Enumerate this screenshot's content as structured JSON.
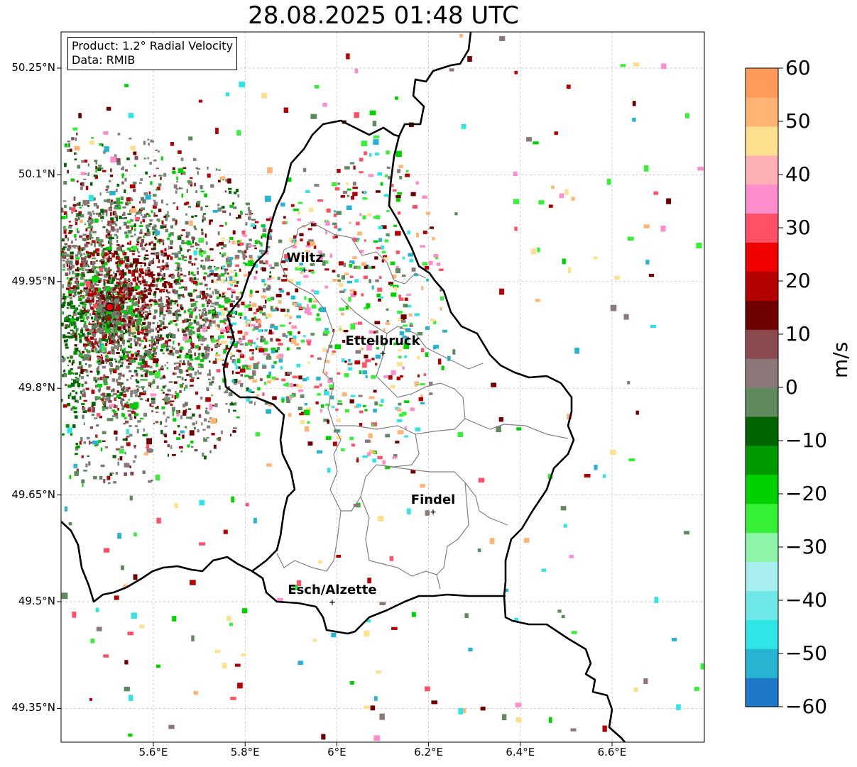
{
  "title": "28.08.2025 01:48 UTC",
  "info": {
    "product": "Product: 1.2° Radial Velocity",
    "data_source": "Data: RMIB"
  },
  "axes": {
    "lat_ticks": [
      "50.25°N",
      "50.1°N",
      "49.95°N",
      "49.8°N",
      "49.65°N",
      "49.5°N",
      "49.35°N"
    ],
    "lon_ticks": [
      "5.6°E",
      "5.8°E",
      "6°E",
      "6.2°E",
      "6.4°E",
      "6.6°E"
    ],
    "grid": true
  },
  "cities": [
    {
      "name": "Wiltz",
      "lon": 5.93,
      "lat": 49.966
    },
    {
      "name": "Ettelbruck",
      "lon": 6.1,
      "lat": 49.849
    },
    {
      "name": "Findel",
      "lon": 6.21,
      "lat": 49.626
    },
    {
      "name": "Esch/Alzette",
      "lon": 5.99,
      "lat": 49.499
    }
  ],
  "radar_site": {
    "lon": 5.505,
    "lat": 49.914,
    "color": "#e60000"
  },
  "colorbar": {
    "label": "m/s",
    "ticks": [
      "60",
      "50",
      "40",
      "30",
      "20",
      "10",
      "0",
      "−10",
      "−20",
      "−30",
      "−40",
      "−50",
      "−60"
    ],
    "range": [
      -60,
      60
    ],
    "colors": [
      "#1f78c8",
      "#26b4d2",
      "#2ee6e6",
      "#6ee8e8",
      "#a8eeee",
      "#8ef5a8",
      "#36f036",
      "#00d200",
      "#009a00",
      "#006400",
      "#5e8a5e",
      "#8c7878",
      "#8a4a50",
      "#700000",
      "#b40000",
      "#f00000",
      "#ff5066",
      "#ff8ccc",
      "#ffb0b4",
      "#ffe08e",
      "#ffb474",
      "#ff9a5a"
    ]
  },
  "map_colors": {
    "country_border": "#000000",
    "canton_border": "#808080",
    "grid": "#bbbbbb"
  }
}
